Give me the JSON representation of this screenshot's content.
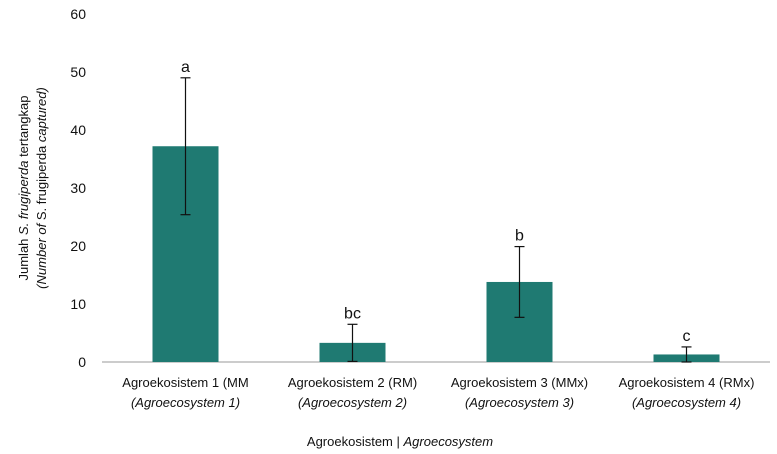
{
  "chart_data": {
    "type": "bar",
    "y_label_parts": [
      "Jumlah ",
      "S. frugiperda",
      " tertangkap"
    ],
    "y_label_translation_parts": [
      "(",
      "Number of ",
      "S. frugiperda",
      " captured",
      ")"
    ],
    "x_label_parts": [
      "Agroekosistem | ",
      "Agroecosystem"
    ],
    "categories": [
      "Agroekosistem 1 (MM",
      "Agroekosistem 2 (RM)",
      "Agroekosistem 3 (MMx)",
      "Agroekosistem 4 (RMx)"
    ],
    "category_translations": [
      "(Agroecosystem 1)",
      "(Agroecosystem 2)",
      "(Agroecosystem 3)",
      "(Agroecosystem 4)"
    ],
    "values": [
      37.2,
      3.3,
      13.8,
      1.3
    ],
    "errors": [
      11.8,
      3.2,
      6.1,
      1.3
    ],
    "significance_labels": [
      "a",
      "bc",
      "b",
      "c"
    ],
    "color": "#1f7a72",
    "ylim": [
      0,
      60
    ],
    "yticks": [
      0,
      10,
      20,
      30,
      40,
      50,
      60
    ],
    "grid": false
  }
}
